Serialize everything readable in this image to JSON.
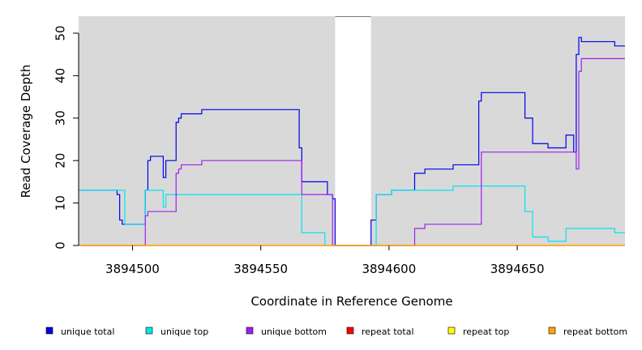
{
  "chart_data": {
    "type": "line",
    "title": "",
    "xlabel": "Coordinate in Reference Genome",
    "ylabel": "Read Coverage Depth",
    "xlim": [
      3894479,
      3894692
    ],
    "ylim": [
      0,
      54
    ],
    "x_ticks": [
      3894500,
      3894550,
      3894600,
      3894650
    ],
    "y_ticks": [
      0,
      10,
      20,
      30,
      40,
      50
    ],
    "shaded_regions": [
      [
        3894479,
        3894579
      ],
      [
        3894593,
        3894692
      ]
    ],
    "background_color": "#d9d9d9",
    "grid": false,
    "legend_position": "bottom",
    "series": [
      {
        "name": "unique total",
        "color": "#0000ee",
        "x": [
          3894479,
          3894494,
          3894495,
          3894496,
          3894497,
          3894505,
          3894506,
          3894507,
          3894508,
          3894512,
          3894513,
          3894517,
          3894518,
          3894519,
          3894527,
          3894565,
          3894566,
          3894567,
          3894576,
          3894578,
          3894579,
          3894593,
          3894595,
          3894601,
          3894610,
          3894614,
          3894625,
          3894635,
          3894636,
          3894653,
          3894656,
          3894662,
          3894669,
          3894672,
          3894673,
          3894674,
          3894675,
          3894676,
          3894680,
          3894688,
          3894692
        ],
        "values": [
          13,
          12,
          6,
          5,
          5,
          13,
          20,
          21,
          21,
          16,
          20,
          29,
          30,
          31,
          32,
          23,
          15,
          15,
          12,
          11,
          0,
          6,
          12,
          13,
          17,
          18,
          19,
          34,
          36,
          30,
          24,
          23,
          26,
          22,
          45,
          49,
          48,
          48,
          48,
          47,
          47
        ]
      },
      {
        "name": "unique top",
        "color": "#00e5ee",
        "x": [
          3894479,
          3894497,
          3894505,
          3894506,
          3894512,
          3894513,
          3894565,
          3894566,
          3894575,
          3894578,
          3894593,
          3894595,
          3894601,
          3894610,
          3894625,
          3894653,
          3894656,
          3894657,
          3894662,
          3894669,
          3894688,
          3894692
        ],
        "values": [
          13,
          5,
          13,
          13,
          9,
          12,
          12,
          3,
          0,
          0,
          0,
          12,
          13,
          13,
          14,
          8,
          2,
          2,
          1,
          4,
          3,
          3
        ]
      },
      {
        "name": "unique bottom",
        "color": "#a020f0",
        "x": [
          3894479,
          3894505,
          3894506,
          3894507,
          3894517,
          3894518,
          3894519,
          3894520,
          3894527,
          3894565,
          3894566,
          3894578,
          3894610,
          3894614,
          3894635,
          3894636,
          3894672,
          3894673,
          3894674,
          3894675,
          3894692
        ],
        "values": [
          0,
          7,
          8,
          8,
          17,
          18,
          19,
          19,
          20,
          20,
          12,
          0,
          4,
          5,
          5,
          22,
          22,
          18,
          41,
          44,
          44
        ]
      },
      {
        "name": "repeat total",
        "color": "#ff0000",
        "x": [
          3894479,
          3894692
        ],
        "values": [
          0,
          0
        ]
      },
      {
        "name": "repeat top",
        "color": "#ffff00",
        "x": [
          3894479,
          3894692
        ],
        "values": [
          0,
          0
        ]
      },
      {
        "name": "repeat bottom",
        "color": "#ffa500",
        "x": [
          3894479,
          3894692
        ],
        "values": [
          0,
          0
        ]
      }
    ]
  }
}
